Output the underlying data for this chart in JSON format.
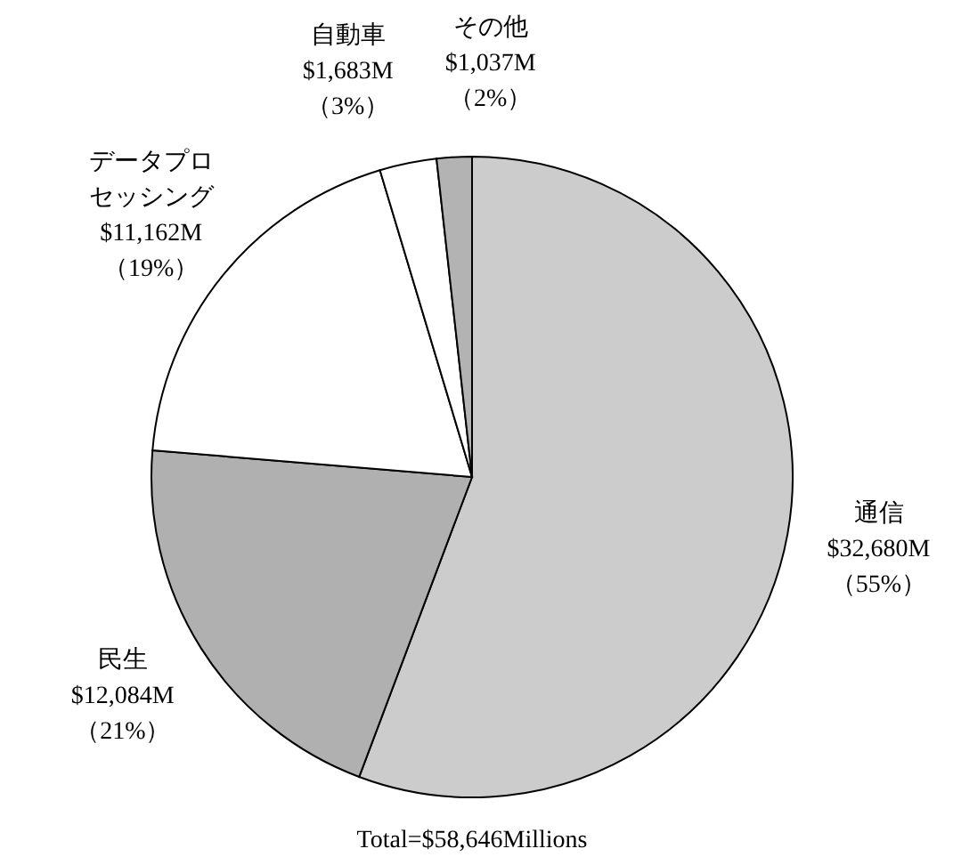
{
  "chart_data": {
    "type": "pie",
    "title": "Total=$58,646Millions",
    "categories": [
      "通信",
      "民生",
      "データプロセッシング",
      "自動車",
      "その他"
    ],
    "values": [
      32680,
      12084,
      11162,
      1683,
      1037
    ],
    "colors": [
      "#cccccc",
      "#b0b0b0",
      "#ffffff",
      "#ffffff",
      "#b3b3b3"
    ],
    "value_labels": [
      "$32,680M",
      "$12,084M",
      "$11,162M",
      "$1,683M",
      "$1,037M"
    ],
    "annotations": [
      {
        "text": "（55%）",
        "x": "通信"
      },
      {
        "text": "（21%）",
        "x": "民生"
      },
      {
        "text": "（19%）",
        "x": "データプロセッシング"
      },
      {
        "text": "（3%）",
        "x": "自動車"
      },
      {
        "text": "（2%）",
        "x": "その他"
      }
    ]
  }
}
